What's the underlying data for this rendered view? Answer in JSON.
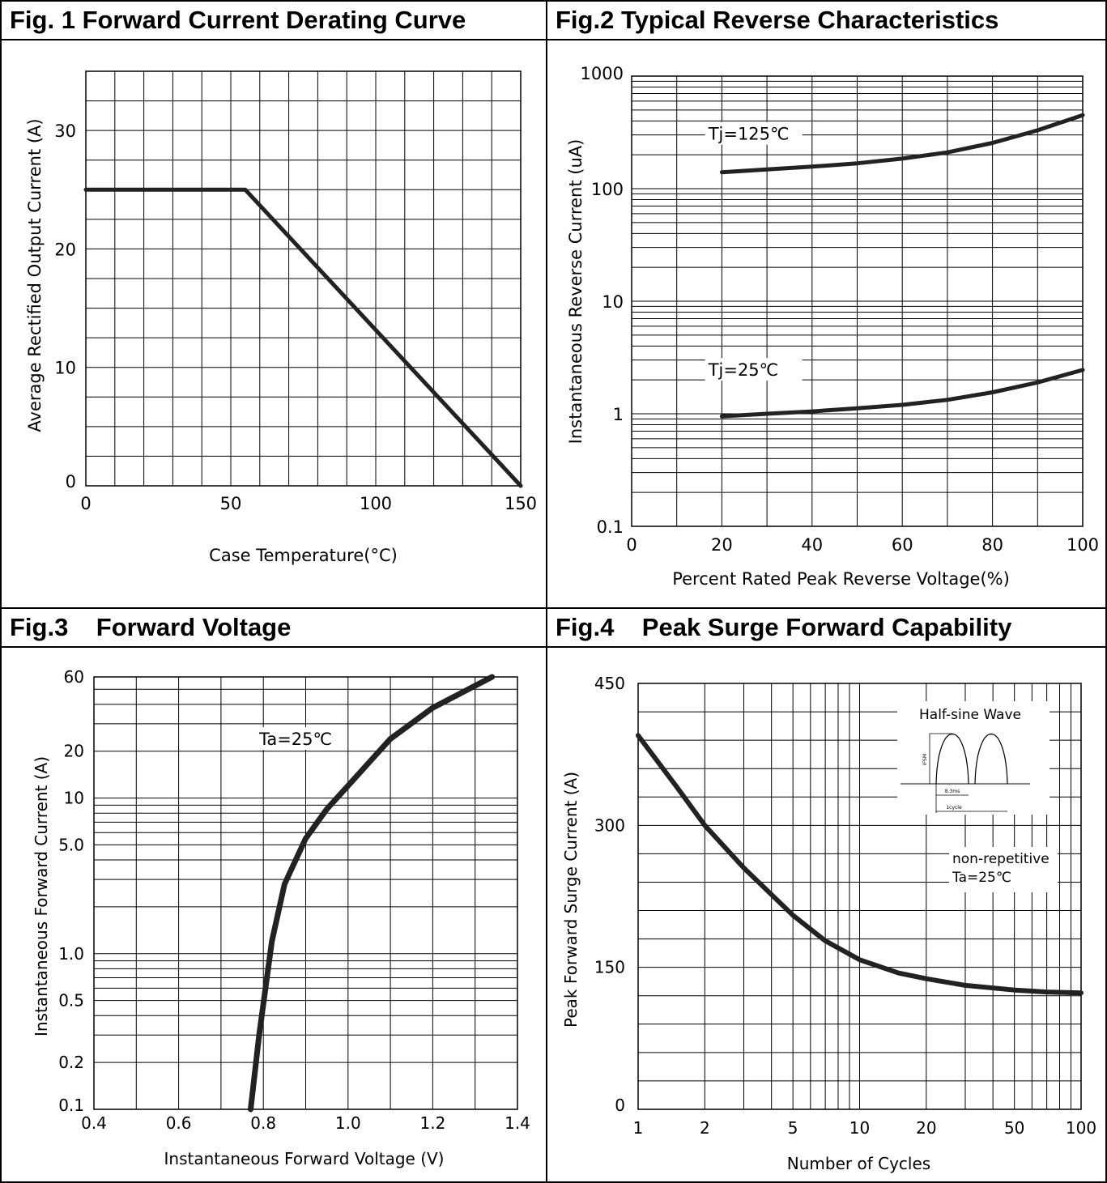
{
  "figures": [
    {
      "title": "Fig. 1 Forward Current Derating Curve"
    },
    {
      "title": "Fig.2 Typical Reverse Characteristics"
    },
    {
      "title": "Fig.3    Forward Voltage"
    },
    {
      "title": "Fig.4    Peak Surge Forward Capability"
    }
  ],
  "chart_data": [
    {
      "type": "line",
      "title": "Fig. 1 Forward Current Derating Curve",
      "xlabel": "Case Temperature(°C)",
      "ylabel": "Average Rectified Output Current (A)",
      "xlim": [
        0,
        150
      ],
      "ylim": [
        0,
        35
      ],
      "x_ticks": [
        0,
        50,
        100,
        150
      ],
      "y_ticks": [
        0,
        10,
        20,
        30
      ],
      "grid": true,
      "series": [
        {
          "x": [
            0,
            55,
            150
          ],
          "y": [
            25,
            25,
            0
          ]
        }
      ]
    },
    {
      "type": "line",
      "title": "Fig.2 Typical Reverse Characteristics",
      "xlabel": "Percent Rated Peak Reverse Voltage(%)",
      "ylabel": "Instantaneous Reverse Current (uA)",
      "xscale": "linear",
      "yscale": "log",
      "xlim": [
        0,
        100
      ],
      "ylim": [
        0.1,
        1000
      ],
      "x_ticks": [
        0,
        20,
        40,
        60,
        80,
        100
      ],
      "y_ticks": [
        0.1,
        1,
        10,
        100,
        1000
      ],
      "y_tick_labels": [
        "0.1",
        "1",
        "10",
        "100",
        "1000"
      ],
      "grid": true,
      "series": [
        {
          "name": "Tj=125℃",
          "x": [
            20,
            30,
            40,
            50,
            60,
            70,
            80,
            90,
            100
          ],
          "y": [
            140,
            148,
            157,
            168,
            185,
            210,
            255,
            330,
            450
          ]
        },
        {
          "name": "Tj=25℃",
          "x": [
            20,
            30,
            40,
            50,
            60,
            70,
            80,
            90,
            100
          ],
          "y": [
            0.95,
            1.0,
            1.05,
            1.12,
            1.2,
            1.33,
            1.55,
            1.9,
            2.45
          ]
        }
      ]
    },
    {
      "type": "line",
      "title": "Fig.3    Forward Voltage",
      "xlabel": "Instantaneous Forward Voltage (V)",
      "ylabel": "Instantaneous Forward Current (A)",
      "xscale": "linear",
      "yscale": "log",
      "xlim": [
        0.4,
        1.4
      ],
      "ylim": [
        0.1,
        60
      ],
      "x_ticks": [
        0.4,
        0.6,
        0.8,
        1.0,
        1.2,
        1.4
      ],
      "x_tick_labels": [
        "0.4",
        "0.6",
        "0.8",
        "1.0",
        "1.2",
        "1.4"
      ],
      "y_ticks": [
        0.1,
        0.2,
        0.5,
        1.0,
        5.0,
        10,
        20,
        60
      ],
      "y_tick_labels": [
        "0.1",
        "0.2",
        "0.5",
        "1.0",
        "5.0",
        "10",
        "20",
        "60"
      ],
      "grid": true,
      "annotation": "Ta=25℃",
      "series": [
        {
          "name": "Ta=25℃",
          "x": [
            0.77,
            0.79,
            0.82,
            0.85,
            0.9,
            0.95,
            1.0,
            1.05,
            1.1,
            1.2,
            1.34
          ],
          "y": [
            0.1,
            0.3,
            1.2,
            2.8,
            5.5,
            8.5,
            12,
            17,
            24,
            38,
            60
          ]
        }
      ]
    },
    {
      "type": "line",
      "title": "Fig.4    Peak Surge Forward Capability",
      "xlabel": "Number of Cycles",
      "ylabel": "Peak Forward Surge Current (A)",
      "xscale": "log",
      "yscale": "linear",
      "xlim": [
        1,
        100
      ],
      "ylim": [
        0,
        450
      ],
      "x_ticks": [
        1,
        2,
        5,
        10,
        20,
        50,
        100
      ],
      "y_ticks": [
        0,
        150,
        300,
        450
      ],
      "grid": true,
      "inset_title": "Half-sine Wave",
      "inset_labels": [
        "IFSM",
        "8.3ms",
        "1cycle"
      ],
      "annotation_lines": [
        "non-repetitive",
        "Ta=25℃"
      ],
      "series": [
        {
          "x": [
            1,
            1.5,
            2,
            3,
            5,
            7,
            10,
            15,
            20,
            30,
            50,
            70,
            100
          ],
          "y": [
            395,
            340,
            300,
            255,
            205,
            178,
            158,
            144,
            138,
            131,
            126,
            124,
            123
          ]
        }
      ]
    }
  ]
}
